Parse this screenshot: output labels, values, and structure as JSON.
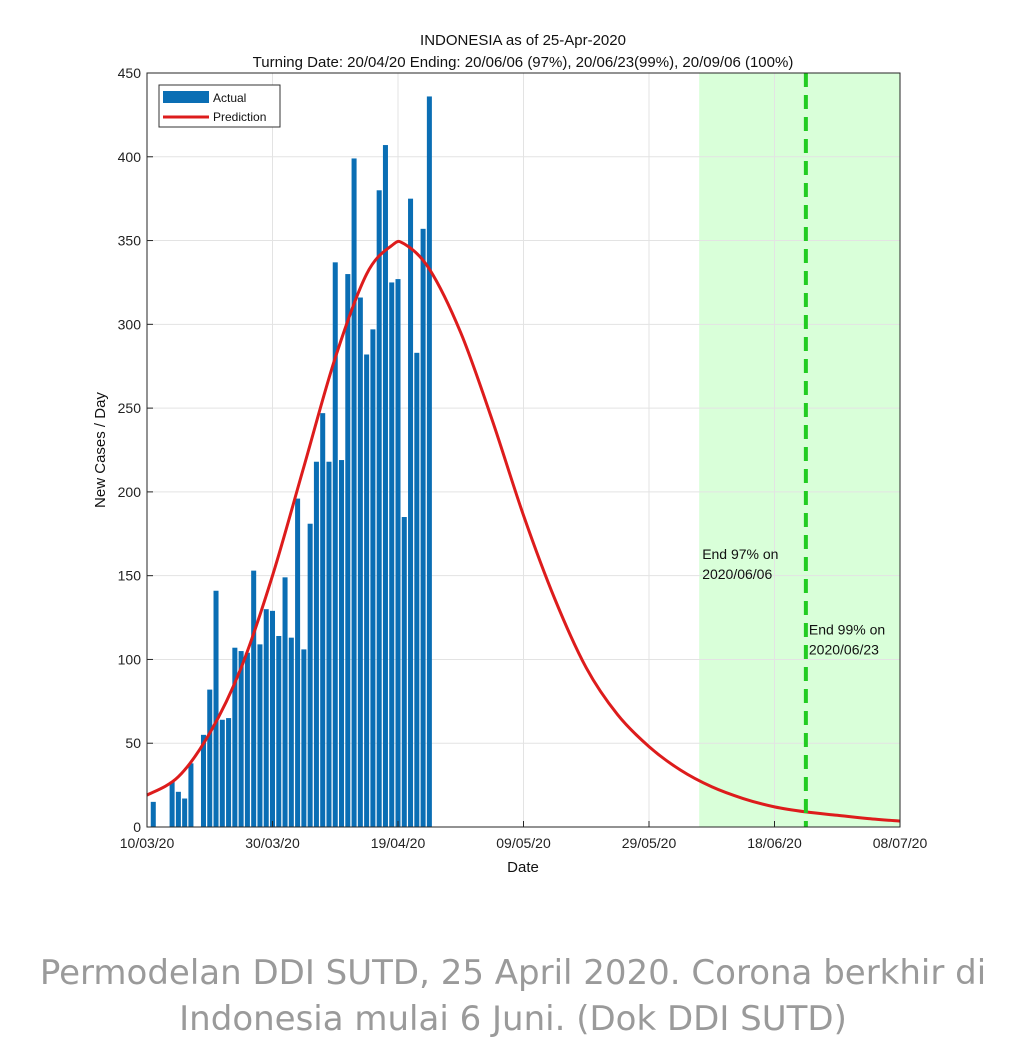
{
  "chart_data": {
    "type": "bar",
    "title": "INDONESIA as of 25-Apr-2020",
    "subtitle": "Turning Date: 20/04/20  Ending: 20/06/06 (97%), 20/06/23(99%), 20/09/06 (100%)",
    "xlabel": "Date",
    "ylabel": "New Cases / Day",
    "ylim": [
      0,
      450
    ],
    "yticks": [
      0,
      50,
      100,
      150,
      200,
      250,
      300,
      350,
      400,
      450
    ],
    "xlim": [
      "2020-03-10",
      "2020-07-08"
    ],
    "xticks": [
      {
        "date": "2020-03-10",
        "label": "10/03/20"
      },
      {
        "date": "2020-03-30",
        "label": "30/03/20"
      },
      {
        "date": "2020-04-19",
        "label": "19/04/20"
      },
      {
        "date": "2020-05-09",
        "label": "09/05/20"
      },
      {
        "date": "2020-05-29",
        "label": "29/05/20"
      },
      {
        "date": "2020-06-18",
        "label": "18/06/20"
      },
      {
        "date": "2020-07-08",
        "label": "08/07/20"
      }
    ],
    "grid": true,
    "legend_position": "top-left",
    "series": [
      {
        "name": "Actual",
        "kind": "bar",
        "color": "#0a6eb4",
        "points": [
          {
            "x": "2020-03-11",
            "y": 15
          },
          {
            "x": "2020-03-14",
            "y": 27
          },
          {
            "x": "2020-03-15",
            "y": 21
          },
          {
            "x": "2020-03-16",
            "y": 17
          },
          {
            "x": "2020-03-17",
            "y": 38
          },
          {
            "x": "2020-03-19",
            "y": 55
          },
          {
            "x": "2020-03-20",
            "y": 82
          },
          {
            "x": "2020-03-21",
            "y": 141
          },
          {
            "x": "2020-03-22",
            "y": 64
          },
          {
            "x": "2020-03-23",
            "y": 65
          },
          {
            "x": "2020-03-24",
            "y": 107
          },
          {
            "x": "2020-03-25",
            "y": 105
          },
          {
            "x": "2020-03-26",
            "y": 104
          },
          {
            "x": "2020-03-27",
            "y": 153
          },
          {
            "x": "2020-03-28",
            "y": 109
          },
          {
            "x": "2020-03-29",
            "y": 130
          },
          {
            "x": "2020-03-30",
            "y": 129
          },
          {
            "x": "2020-03-31",
            "y": 114
          },
          {
            "x": "2020-04-01",
            "y": 149
          },
          {
            "x": "2020-04-02",
            "y": 113
          },
          {
            "x": "2020-04-03",
            "y": 196
          },
          {
            "x": "2020-04-04",
            "y": 106
          },
          {
            "x": "2020-04-05",
            "y": 181
          },
          {
            "x": "2020-04-06",
            "y": 218
          },
          {
            "x": "2020-04-07",
            "y": 247
          },
          {
            "x": "2020-04-08",
            "y": 218
          },
          {
            "x": "2020-04-09",
            "y": 337
          },
          {
            "x": "2020-04-10",
            "y": 219
          },
          {
            "x": "2020-04-11",
            "y": 330
          },
          {
            "x": "2020-04-12",
            "y": 399
          },
          {
            "x": "2020-04-13",
            "y": 316
          },
          {
            "x": "2020-04-14",
            "y": 282
          },
          {
            "x": "2020-04-15",
            "y": 297
          },
          {
            "x": "2020-04-16",
            "y": 380
          },
          {
            "x": "2020-04-17",
            "y": 407
          },
          {
            "x": "2020-04-18",
            "y": 325
          },
          {
            "x": "2020-04-19",
            "y": 327
          },
          {
            "x": "2020-04-20",
            "y": 185
          },
          {
            "x": "2020-04-21",
            "y": 375
          },
          {
            "x": "2020-04-22",
            "y": 283
          },
          {
            "x": "2020-04-23",
            "y": 357
          },
          {
            "x": "2020-04-24",
            "y": 436
          }
        ]
      },
      {
        "name": "Prediction",
        "kind": "line",
        "color": "#dd1c1c",
        "points": [
          {
            "x": "2020-03-10",
            "y": 19
          },
          {
            "x": "2020-03-15",
            "y": 30
          },
          {
            "x": "2020-03-20",
            "y": 56
          },
          {
            "x": "2020-03-25",
            "y": 95
          },
          {
            "x": "2020-03-30",
            "y": 150
          },
          {
            "x": "2020-04-04",
            "y": 215
          },
          {
            "x": "2020-04-09",
            "y": 280
          },
          {
            "x": "2020-04-14",
            "y": 330
          },
          {
            "x": "2020-04-18",
            "y": 347
          },
          {
            "x": "2020-04-20",
            "y": 348
          },
          {
            "x": "2020-04-24",
            "y": 333
          },
          {
            "x": "2020-04-29",
            "y": 295
          },
          {
            "x": "2020-05-04",
            "y": 243
          },
          {
            "x": "2020-05-09",
            "y": 186
          },
          {
            "x": "2020-05-14",
            "y": 136
          },
          {
            "x": "2020-05-19",
            "y": 95
          },
          {
            "x": "2020-05-24",
            "y": 67
          },
          {
            "x": "2020-05-29",
            "y": 48
          },
          {
            "x": "2020-06-03",
            "y": 34
          },
          {
            "x": "2020-06-08",
            "y": 24
          },
          {
            "x": "2020-06-13",
            "y": 17
          },
          {
            "x": "2020-06-18",
            "y": 12
          },
          {
            "x": "2020-06-23",
            "y": 9
          },
          {
            "x": "2020-06-28",
            "y": 7
          },
          {
            "x": "2020-07-03",
            "y": 5
          },
          {
            "x": "2020-07-08",
            "y": 3.5
          }
        ]
      }
    ],
    "shaded_region": {
      "from": "2020-06-06",
      "to": "2020-07-08",
      "color": "#d9ffd9"
    },
    "vertical_line": {
      "x": "2020-06-23",
      "color": "#22cc22",
      "style": "dashed"
    },
    "annotations": [
      {
        "x": "2020-06-06",
        "y": 160,
        "lines": [
          "End 97% on",
          "2020/06/06"
        ]
      },
      {
        "x": "2020-06-23",
        "y": 115,
        "lines": [
          "End 99% on",
          "2020/06/23"
        ]
      }
    ]
  },
  "caption": "Permodelan DDI SUTD, 25 April 2020. Corona berkhir di Indonesia mulai 6 Juni. (Dok DDI SUTD)"
}
